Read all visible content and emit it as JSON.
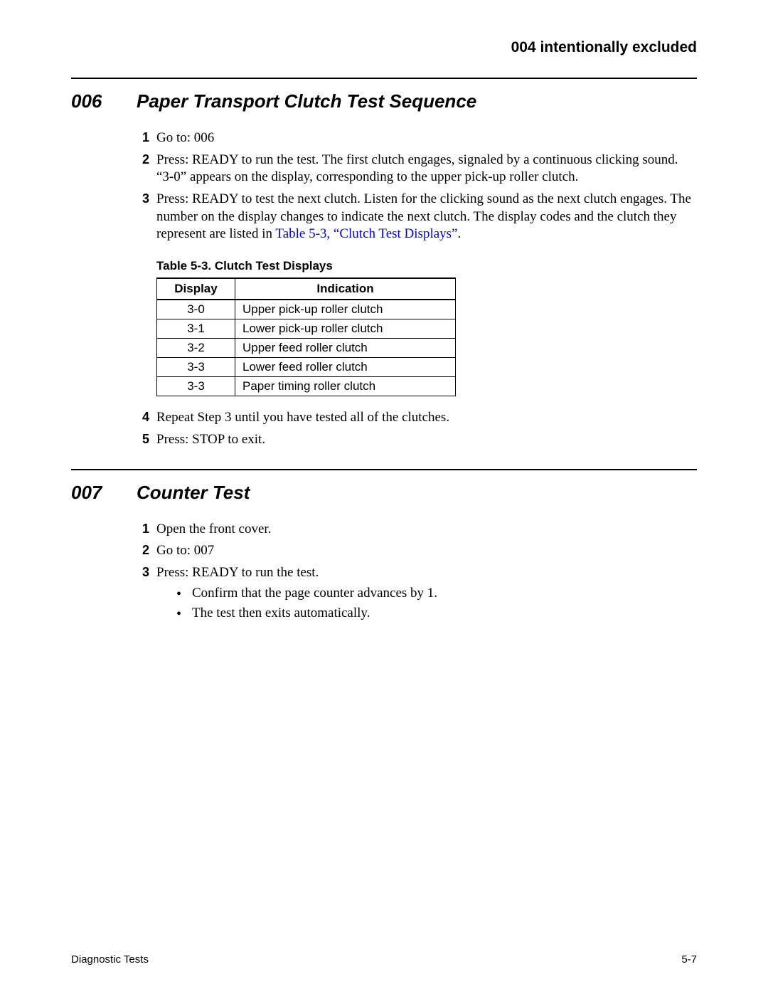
{
  "header": {
    "right": "004 intentionally excluded"
  },
  "sections": {
    "s006": {
      "num": "006",
      "title": "Paper Transport Clutch Test Sequence",
      "steps": {
        "1": "Go to: 006",
        "2": "Press: READY to run the test. The first clutch engages, signaled by a continuous clicking sound. “3-0” appears on the display, corresponding to the upper pick-up roller clutch.",
        "3_pre": "Press: READY to test the next clutch. Listen for the clicking sound as the next clutch engages. The number on the display changes to indicate the next clutch. The display codes and the clutch they represent are listed in ",
        "3_link": "Table 5-3, “Clutch Test Displays”",
        "3_post": ".",
        "4": "Repeat Step 3 until you have tested all of the clutches.",
        "5": "Press: STOP to exit."
      }
    },
    "s007": {
      "num": "007",
      "title": "Counter Test",
      "steps": {
        "1": "Open the front cover.",
        "2": "Go to: 007",
        "3": "Press: READY to run the test.",
        "3_bullets": {
          "0": "Confirm that the page counter advances by 1.",
          "1": "The test then exits automatically."
        }
      }
    }
  },
  "table": {
    "caption": "Table 5-3.  Clutch Test Displays",
    "headers": {
      "display": "Display",
      "indication": "Indication"
    },
    "rows": {
      "0": {
        "d": "3-0",
        "i": "Upper pick-up roller clutch"
      },
      "1": {
        "d": "3-1",
        "i": "Lower pick-up roller clutch"
      },
      "2": {
        "d": "3-2",
        "i": "Upper feed roller clutch"
      },
      "3": {
        "d": "3-3",
        "i": "Lower feed roller clutch"
      },
      "4": {
        "d": "3-3",
        "i": "Paper timing roller clutch"
      }
    }
  },
  "footer": {
    "left": "Diagnostic Tests",
    "right": "5-7"
  },
  "colors": {
    "link": "#0000dd",
    "text": "#000000",
    "bg": "#ffffff"
  }
}
